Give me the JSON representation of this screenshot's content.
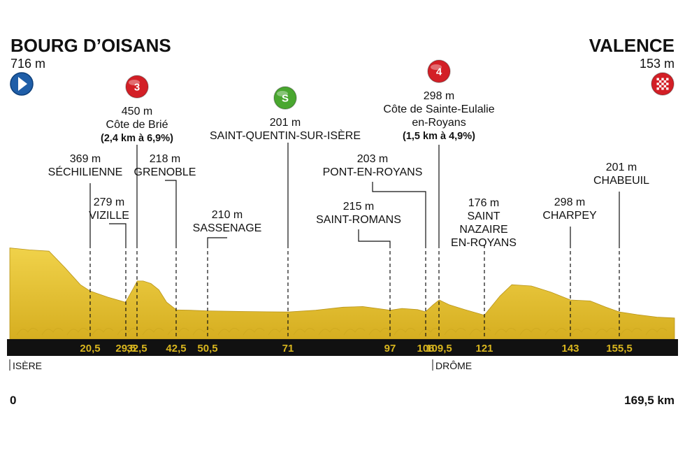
{
  "chart_data": {
    "type": "area",
    "title": "",
    "xlabel": "",
    "ylabel": "",
    "x_unit": "km",
    "xlim": [
      0,
      169.5
    ],
    "start": {
      "name": "BOURG D’OISANS",
      "altitude": "716 m",
      "icon": "start-arrow-icon"
    },
    "finish": {
      "name": "VALENCE",
      "altitude": "153 m",
      "icon": "finish-flag-icon"
    },
    "distance_start_label": "0",
    "distance_end_label": "169,5 km",
    "regions": [
      {
        "name": "ISÈRE",
        "km": 0
      },
      {
        "name": "DRÔME",
        "km": 107.5
      }
    ],
    "waypoints": [
      {
        "km": 20.5,
        "km_label": "20,5",
        "lines": [
          "369 m",
          "SÉCHILIENNE"
        ]
      },
      {
        "km": 29.5,
        "km_label": "29,5",
        "lines": [
          "279 m",
          "VIZILLE"
        ]
      },
      {
        "km": 32.5,
        "km_label": "32,5",
        "lines": [
          "450 m",
          "Côte de Brié",
          "(2,4 km à 6,9%)"
        ],
        "badge": {
          "text": "3",
          "color": "#d31f26"
        }
      },
      {
        "km": 42.5,
        "km_label": "42,5",
        "lines": [
          "218 m",
          "GRENOBLE"
        ]
      },
      {
        "km": 50.5,
        "km_label": "50,5",
        "lines": [
          "210 m",
          "SASSENAGE"
        ]
      },
      {
        "km": 71,
        "km_label": "71",
        "lines": [
          "201 m",
          "SAINT-QUENTIN-SUR-ISÈRE"
        ],
        "badge": {
          "text": "S",
          "color": "#49a72f"
        }
      },
      {
        "km": 97,
        "km_label": "97",
        "lines": [
          "215 m",
          "SAINT-ROMANS"
        ]
      },
      {
        "km": 106,
        "km_label": "106",
        "lines": [
          "203 m",
          "PONT-EN-ROYANS"
        ]
      },
      {
        "km": 109.5,
        "km_label": "109,5",
        "lines": [
          "298 m",
          "Côte de Sainte-Eulalie",
          "en-Royans",
          "(1,5 km à 4,9%)"
        ],
        "badge": {
          "text": "4",
          "color": "#d31f26"
        }
      },
      {
        "km": 121,
        "km_label": "121",
        "lines": [
          "176 m",
          "SAINT",
          "NAZAIRE",
          "EN-ROYANS"
        ]
      },
      {
        "km": 143,
        "km_label": "143",
        "lines": [
          "298 m",
          "CHARPEY"
        ]
      },
      {
        "km": 155.5,
        "km_label": "155,5",
        "lines": [
          "201 m",
          "CHABEUIL"
        ]
      }
    ],
    "profile": [
      {
        "km": 0,
        "alt": 716
      },
      {
        "km": 5,
        "alt": 700
      },
      {
        "km": 10,
        "alt": 690
      },
      {
        "km": 14,
        "alt": 560
      },
      {
        "km": 18,
        "alt": 420
      },
      {
        "km": 20.5,
        "alt": 369
      },
      {
        "km": 25,
        "alt": 320
      },
      {
        "km": 29.5,
        "alt": 279
      },
      {
        "km": 31.5,
        "alt": 390
      },
      {
        "km": 32.5,
        "alt": 450
      },
      {
        "km": 34,
        "alt": 450
      },
      {
        "km": 36,
        "alt": 430
      },
      {
        "km": 38,
        "alt": 380
      },
      {
        "km": 40,
        "alt": 280
      },
      {
        "km": 42.5,
        "alt": 218
      },
      {
        "km": 46,
        "alt": 215
      },
      {
        "km": 50.5,
        "alt": 210
      },
      {
        "km": 60,
        "alt": 205
      },
      {
        "km": 71,
        "alt": 201
      },
      {
        "km": 78,
        "alt": 215
      },
      {
        "km": 85,
        "alt": 240
      },
      {
        "km": 90,
        "alt": 245
      },
      {
        "km": 97,
        "alt": 215
      },
      {
        "km": 100,
        "alt": 230
      },
      {
        "km": 104,
        "alt": 220
      },
      {
        "km": 106,
        "alt": 203
      },
      {
        "km": 108,
        "alt": 260
      },
      {
        "km": 109.5,
        "alt": 298
      },
      {
        "km": 112,
        "alt": 260
      },
      {
        "km": 116,
        "alt": 220
      },
      {
        "km": 121,
        "alt": 176
      },
      {
        "km": 125,
        "alt": 330
      },
      {
        "km": 128,
        "alt": 420
      },
      {
        "km": 133,
        "alt": 410
      },
      {
        "km": 138,
        "alt": 360
      },
      {
        "km": 143,
        "alt": 298
      },
      {
        "km": 148,
        "alt": 290
      },
      {
        "km": 152,
        "alt": 240
      },
      {
        "km": 155.5,
        "alt": 201
      },
      {
        "km": 160,
        "alt": 180
      },
      {
        "km": 165,
        "alt": 160
      },
      {
        "km": 169.5,
        "alt": 153
      }
    ],
    "fill_color": "#e6c532",
    "fill_shadow_color": "#c9a41c",
    "band_color": "#111111",
    "km_label_color": "#d8b51e"
  }
}
